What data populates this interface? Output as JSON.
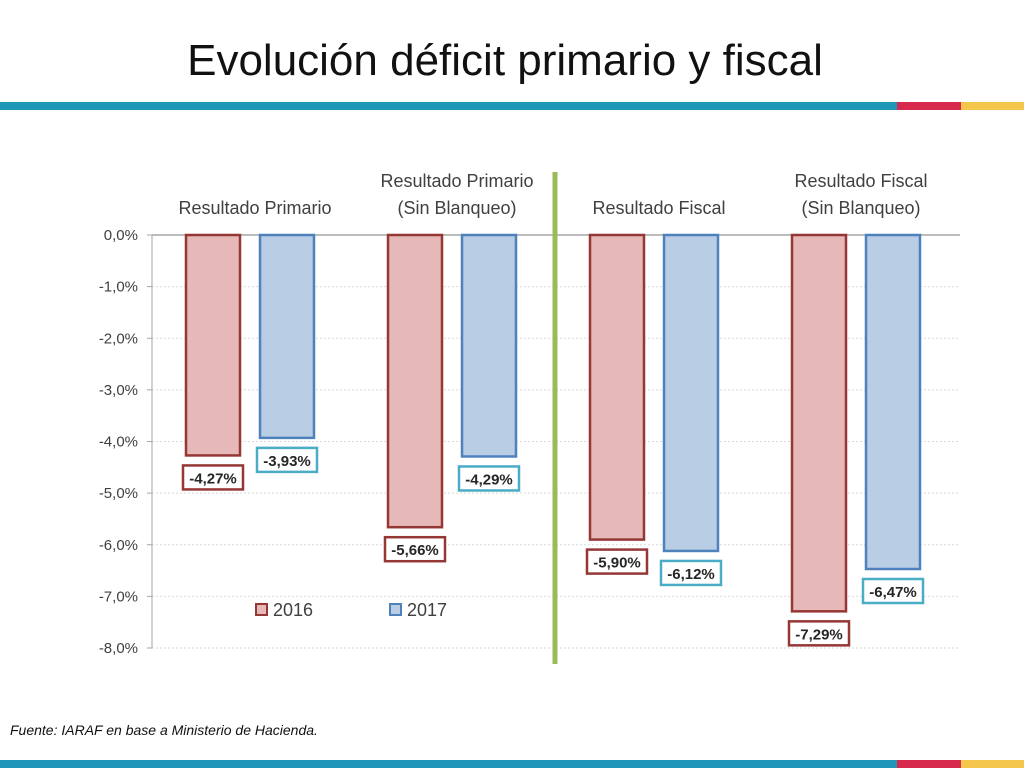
{
  "slide": {
    "title": "Evolución déficit primario y fiscal",
    "source": "Fuente: IARAF en base a  Ministerio de Hacienda."
  },
  "colors": {
    "bar_2016_fill": "#e6b8b7",
    "bar_2016_border": "#953735",
    "bar_2017_fill": "#b9cde5",
    "bar_2017_border": "#4f81bd",
    "label_2017_border": "#4bacc6",
    "separator_green": "#9bbb59",
    "accent_teal": "#1f97b9",
    "accent_red": "#d6294b",
    "accent_yellow": "#f4c64b"
  },
  "chart_data": {
    "type": "bar",
    "title": "",
    "xlabel": "",
    "ylabel": "",
    "categories": [
      "Resultado Primario",
      "Resultado Primario\n(Sin Blanqueo)",
      "Resultado Fiscal",
      "Resultado Fiscal\n(Sin Blanqueo)"
    ],
    "series": [
      {
        "name": "2016",
        "values": [
          -4.27,
          -5.66,
          -5.9,
          -7.29
        ],
        "labels": [
          "-4,27%",
          "-5,66%",
          "-5,90%",
          "-7,29%"
        ]
      },
      {
        "name": "2017",
        "values": [
          -3.93,
          -4.29,
          -6.12,
          -6.47
        ],
        "labels": [
          "-3,93%",
          "-4,29%",
          "-6,12%",
          "-6,47%"
        ]
      }
    ],
    "yticks": [
      {
        "value": 0,
        "label": "0,0%"
      },
      {
        "value": -1,
        "label": "-1,0%"
      },
      {
        "value": -2,
        "label": "-2,0%"
      },
      {
        "value": -3,
        "label": "-3,0%"
      },
      {
        "value": -4,
        "label": "-4,0%"
      },
      {
        "value": -5,
        "label": "-5,0%"
      },
      {
        "value": -6,
        "label": "-6,0%"
      },
      {
        "value": -7,
        "label": "-7,0%"
      },
      {
        "value": -8,
        "label": "-8,0%"
      }
    ],
    "ylim": [
      -8,
      0
    ],
    "grid": true,
    "legend_position": "bottom-left, inside plot",
    "separator_between_groups": [
      2,
      3
    ]
  }
}
